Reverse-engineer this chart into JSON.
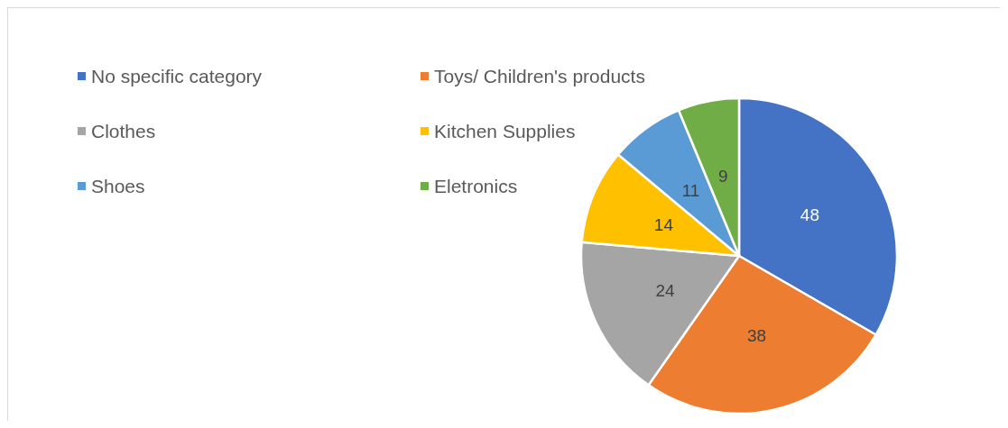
{
  "chart_data": {
    "type": "pie",
    "categories": [
      "No specific category",
      "Toys/ Children's products",
      "Clothes",
      "Kitchen Supplies",
      "Shoes",
      "Eletronics"
    ],
    "values": [
      48,
      38,
      24,
      14,
      11,
      9
    ],
    "colors": [
      "#4472c4",
      "#ed7d31",
      "#a5a5a5",
      "#ffc000",
      "#5b9bd5",
      "#70ad47"
    ],
    "data_labels": true,
    "legend": "top left"
  }
}
